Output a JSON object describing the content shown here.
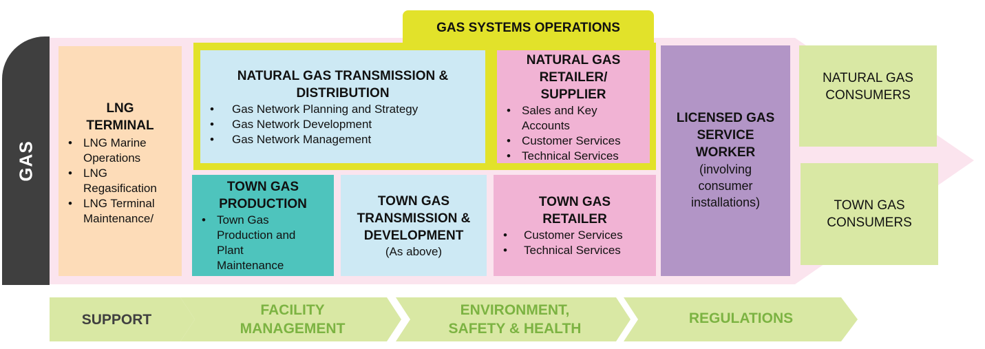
{
  "side_label": "GAS",
  "gas_systems_operations": "GAS SYSTEMS OPERATIONS",
  "lng_terminal": {
    "title": "LNG TERMINAL",
    "items": [
      "LNG Marine Operations",
      "LNG Regasification",
      "LNG Terminal Maintenance/"
    ]
  },
  "ng_transmission": {
    "title": "NATURAL GAS TRANSMISSION & DISTRIBUTION",
    "items": [
      "Gas Network Planning and Strategy",
      "Gas Network Development",
      "Gas Network Management"
    ]
  },
  "ng_retailer": {
    "title": "NATURAL GAS RETAILER/ SUPPLIER",
    "items": [
      "Sales and Key Accounts",
      "Customer Services",
      "Technical Services"
    ]
  },
  "town_gas_production": {
    "title": "TOWN GAS PRODUCTION",
    "items": [
      "Town Gas Production and Plant Maintenance"
    ]
  },
  "town_gas_transmission": {
    "title": "TOWN GAS TRANSMISSION & DEVELOPMENT",
    "note": "(As above)"
  },
  "town_gas_retailer": {
    "title": "TOWN GAS RETAILER",
    "items": [
      "Customer Services",
      "Technical Services"
    ]
  },
  "licensed_worker": {
    "title": "LICENSED GAS SERVICE WORKER",
    "note": "(involving consumer installations)"
  },
  "consumers": {
    "natural": "NATURAL GAS CONSUMERS",
    "town": "TOWN GAS CONSUMERS"
  },
  "bottom_chevrons": [
    "SUPPORT",
    "FACILITY MANAGEMENT",
    "ENVIRONMENT, SAFETY & HEALTH",
    "REGULATIONS"
  ],
  "colors": {
    "background_arrow": "#fbe4ee",
    "gas_tab": "#3f3f3f",
    "lng": "#fddcb8",
    "light_blue": "#cde9f4",
    "pink": "#f1b3d4",
    "teal": "#4ec4bd",
    "purple": "#b295c6",
    "light_green": "#d9e8a4",
    "yellow": "#e2e22a",
    "chevron_text_green": "#7cb342",
    "chevron_text_dark": "#404040"
  }
}
